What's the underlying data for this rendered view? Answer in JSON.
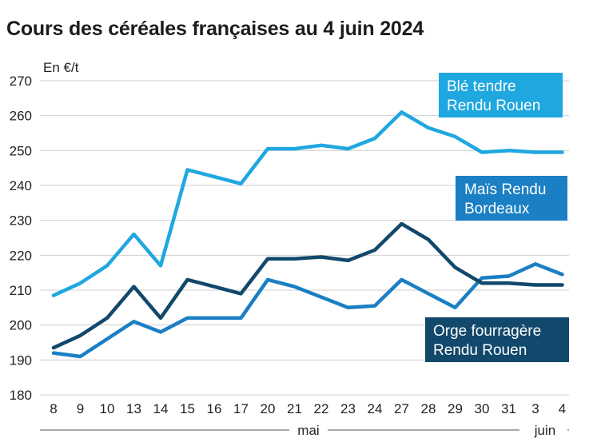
{
  "title": "Cours des céréales françaises au 4 juin 2024",
  "chart_data": {
    "type": "line",
    "title": "Cours des céréales françaises au 4 juin 2024",
    "ylabel": "En €/t",
    "ylim": [
      180,
      270
    ],
    "yticks": [
      180,
      190,
      200,
      210,
      220,
      230,
      240,
      250,
      260,
      270
    ],
    "grid": true,
    "categories": [
      "8",
      "9",
      "10",
      "13",
      "14",
      "15",
      "16",
      "17",
      "20",
      "21",
      "22",
      "23",
      "24",
      "27",
      "28",
      "29",
      "30",
      "31",
      "3",
      "4"
    ],
    "months": [
      {
        "label": "mai",
        "from": 0,
        "to": 17
      },
      {
        "label": "juin",
        "from": 18,
        "to": 19
      }
    ],
    "series": [
      {
        "name_lines": [
          "Blé tendre",
          "Rendu Rouen"
        ],
        "color": "#1fa7df",
        "values": [
          208.5,
          212,
          217,
          226,
          217,
          244.5,
          242.5,
          240.5,
          250.5,
          250.5,
          251.5,
          250.5,
          253.5,
          261,
          256.5,
          254,
          249.5,
          250,
          249.5,
          249.5
        ]
      },
      {
        "name_lines": [
          "Maïs Rendu",
          "Bordeaux"
        ],
        "color": "#1a7fc4",
        "values": [
          192,
          191,
          196,
          201,
          198,
          202,
          202,
          202,
          213,
          211,
          208,
          205,
          205.5,
          213,
          209,
          205,
          213.5,
          214,
          217.5,
          214.5
        ]
      },
      {
        "name_lines": [
          "Orge fourragère",
          "Rendu Rouen"
        ],
        "color": "#11486b",
        "values": [
          193.5,
          197,
          202,
          211,
          202,
          213,
          211,
          209,
          219,
          219,
          219.5,
          218.5,
          221.5,
          229,
          224.5,
          216.5,
          212,
          212,
          211.5,
          211.5
        ]
      }
    ]
  }
}
